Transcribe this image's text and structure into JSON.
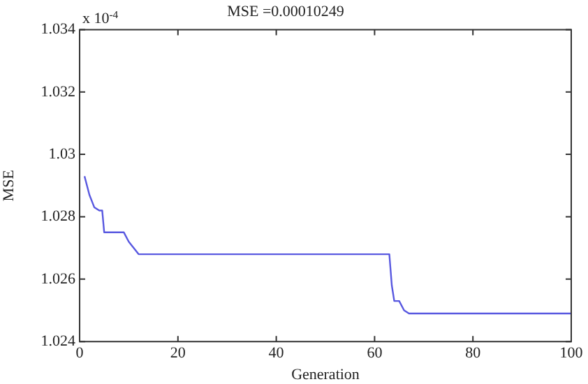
{
  "chart_data": {
    "type": "line",
    "title": "MSE =0.00010249",
    "xlabel": "Generation",
    "ylabel": "MSE",
    "annotations": [
      "x 10$^{-4}$"
    ],
    "x": [
      1,
      2,
      3,
      4,
      4.6,
      5,
      9,
      10,
      12,
      63,
      63.5,
      64,
      65,
      66,
      67,
      75,
      100
    ],
    "series": [
      {
        "color": "#5858e0",
        "values": [
          1.0293,
          1.0287,
          1.0283,
          1.0282,
          1.0282,
          1.0275,
          1.0275,
          1.0272,
          1.0268,
          1.0268,
          1.0258,
          1.0253,
          1.0253,
          1.025,
          1.0249,
          1.0249,
          1.0249
        ]
      }
    ],
    "xlim": [
      0,
      100
    ],
    "xticks": [
      0,
      20,
      40,
      60,
      80,
      100
    ],
    "ylim": [
      1.024,
      1.034
    ],
    "yticks": [
      1.024,
      1.026,
      1.028,
      1.03,
      1.032,
      1.034
    ],
    "grid": false,
    "legend": false,
    "marker": "none",
    "line_style": "solid"
  }
}
